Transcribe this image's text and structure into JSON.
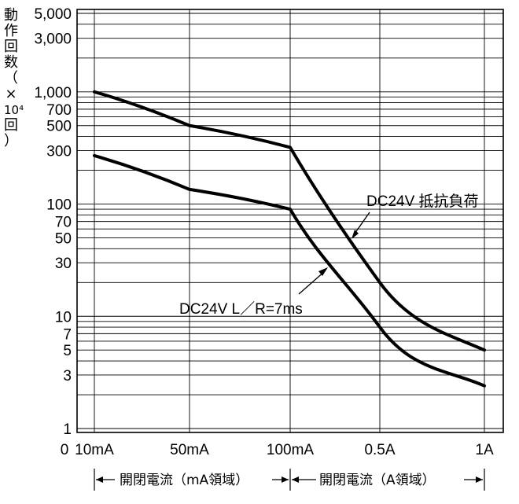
{
  "chart_data": {
    "type": "line",
    "y_axis": {
      "label_chars": [
        "動",
        "作",
        "回",
        "数",
        "（",
        "×",
        "10⁴",
        "回",
        "）"
      ],
      "scale": "log",
      "range": [
        1,
        5000
      ],
      "ticks": [
        {
          "value": 1,
          "label": "1"
        },
        {
          "value": 3,
          "label": "3"
        },
        {
          "value": 5,
          "label": "5"
        },
        {
          "value": 7,
          "label": "7"
        },
        {
          "value": 10,
          "label": "10"
        },
        {
          "value": 30,
          "label": "30"
        },
        {
          "value": 50,
          "label": "50"
        },
        {
          "value": 70,
          "label": "70"
        },
        {
          "value": 100,
          "label": "100"
        },
        {
          "value": 300,
          "label": "300"
        },
        {
          "value": 500,
          "label": "500"
        },
        {
          "value": 700,
          "label": "700"
        },
        {
          "value": 1000,
          "label": "1,000"
        },
        {
          "value": 3000,
          "label": "3,000"
        },
        {
          "value": 5000,
          "label": "5,000"
        }
      ],
      "gridlines": [
        1,
        2,
        3,
        4,
        5,
        6,
        7,
        8,
        9,
        10,
        20,
        30,
        40,
        50,
        60,
        70,
        80,
        90,
        100,
        200,
        300,
        400,
        500,
        600,
        700,
        800,
        900,
        1000,
        2000,
        3000,
        4000,
        5000
      ]
    },
    "x_axis": {
      "origin_label": "0",
      "ticks": [
        "10mA",
        "50mA",
        "100mA",
        "0.5A",
        "1A"
      ],
      "regions": [
        {
          "label": "開閉電流（mA領域）",
          "from": "10mA",
          "to": "100mA"
        },
        {
          "label": "開閉電流（A領域）",
          "from": "100mA",
          "to": "1A"
        }
      ]
    },
    "series": [
      {
        "name": "DC24V 抵抗負荷",
        "points": [
          {
            "x": "10mA",
            "y": 1000
          },
          {
            "x": "50mA",
            "y": 500
          },
          {
            "x": "100mA",
            "y": 320
          },
          {
            "x": "0.5A",
            "y": 20
          },
          {
            "x": "1A",
            "y": 5
          }
        ]
      },
      {
        "name": "DC24V L／R=7ms",
        "points": [
          {
            "x": "10mA",
            "y": 270
          },
          {
            "x": "50mA",
            "y": 135
          },
          {
            "x": "100mA",
            "y": 90
          },
          {
            "x": "0.5A",
            "y": 8
          },
          {
            "x": "1A",
            "y": 2.4
          }
        ]
      }
    ],
    "grid": true,
    "legend": "none"
  }
}
